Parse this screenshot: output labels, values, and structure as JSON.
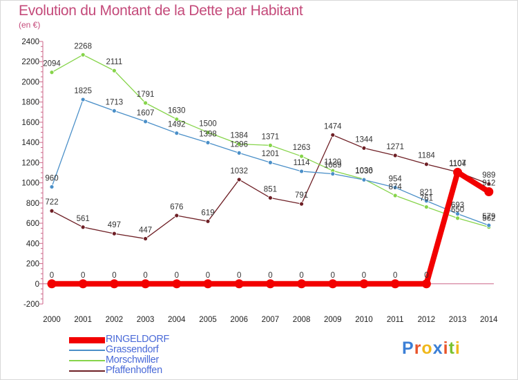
{
  "header": {
    "title": "Evolution du Montant de la Dette par Habitant",
    "subtitle": "(en €)"
  },
  "logo": {
    "text": "Proxiti",
    "colors": [
      "#3b7fd6",
      "#e8542a",
      "#f0b81b",
      "#3b7fd6",
      "#e8542a",
      "#7ac231",
      "#f0b81b"
    ]
  },
  "chart_data": {
    "type": "line",
    "x": [
      2000,
      2001,
      2002,
      2003,
      2004,
      2005,
      2006,
      2007,
      2008,
      2009,
      2010,
      2011,
      2012,
      2013,
      2014
    ],
    "ylim": [
      -200,
      2400
    ],
    "yticks": [
      -200,
      0,
      200,
      400,
      600,
      800,
      1000,
      1200,
      1400,
      1600,
      1800,
      2000,
      2200,
      2400
    ],
    "grid": false,
    "legend": "bottom-left",
    "series": [
      {
        "name": "Pfaffenhoffen",
        "color": "#6e1f25",
        "values": [
          722,
          561,
          497,
          447,
          676,
          619,
          1032,
          851,
          791,
          1474,
          1344,
          1271,
          1184,
          1107,
          989
        ]
      },
      {
        "name": "Morschwiller",
        "color": "#86d44a",
        "values": [
          2094,
          2268,
          2111,
          1791,
          1630,
          1500,
          1384,
          1371,
          1263,
          1120,
          1036,
          874,
          761,
          650,
          562
        ]
      },
      {
        "name": "Grassendorf",
        "color": "#4a8fc8",
        "values": [
          960,
          1825,
          1713,
          1607,
          1492,
          1398,
          1296,
          1201,
          1114,
          1089,
          1030,
          954,
          821,
          693,
          579
        ]
      },
      {
        "name": "RINGELDORF",
        "color": "#f20000",
        "values": [
          0,
          0,
          0,
          0,
          0,
          0,
          0,
          0,
          0,
          0,
          0,
          0,
          0,
          1104,
          912
        ]
      }
    ]
  }
}
